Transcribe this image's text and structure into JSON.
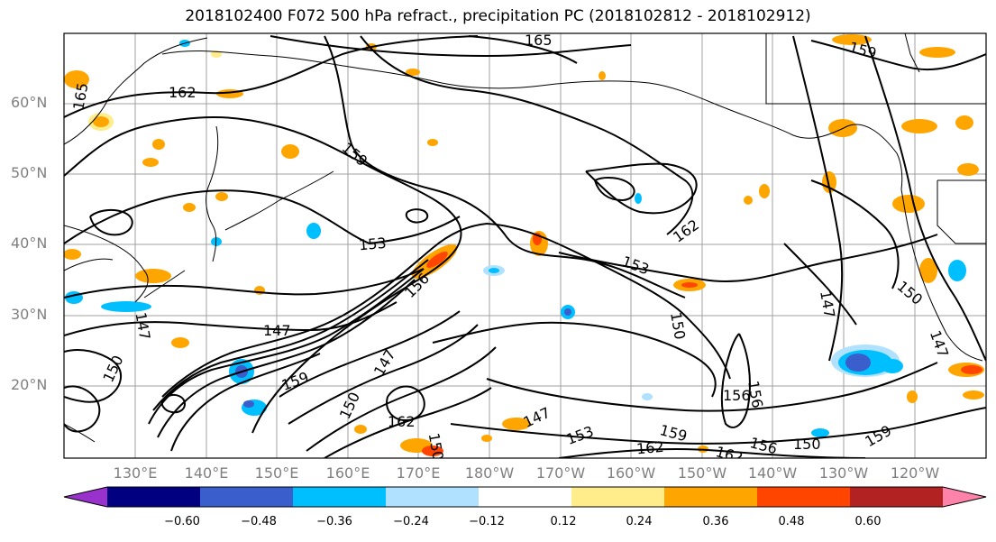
{
  "title": "2018102400 F072 500 hPa refract., precipitation PC (2018102812 - 2018102912)",
  "lat_labels": [
    "60°N",
    "50°N",
    "40°N",
    "30°N",
    "20°N"
  ],
  "lon_labels": [
    "130°E",
    "140°E",
    "150°E",
    "160°E",
    "170°E",
    "180°W",
    "170°W",
    "160°W",
    "150°W",
    "140°W",
    "130°W",
    "120°W"
  ],
  "contour_labels": [
    "165",
    "162",
    "165",
    "159",
    "159",
    "153",
    "156",
    "162",
    "153",
    "150",
    "147",
    "150",
    "147",
    "147",
    "150",
    "147",
    "159",
    "150",
    "156",
    "147",
    "162",
    "147",
    "153",
    "159",
    "162",
    "156",
    "150",
    "162",
    "156",
    "159",
    "150"
  ],
  "colorbar": {
    "ticks": [
      "−0.60",
      "−0.48",
      "−0.36",
      "−0.24",
      "−0.12",
      "0.12",
      "0.24",
      "0.36",
      "0.48",
      "0.60"
    ],
    "colors": [
      "#9932cc",
      "#000080",
      "#3a5fcd",
      "#00bfff",
      "#b0e2ff",
      "#ffffff",
      "#ffec8b",
      "#ffa500",
      "#ff4500",
      "#b22222",
      "#ff82ab"
    ]
  }
}
